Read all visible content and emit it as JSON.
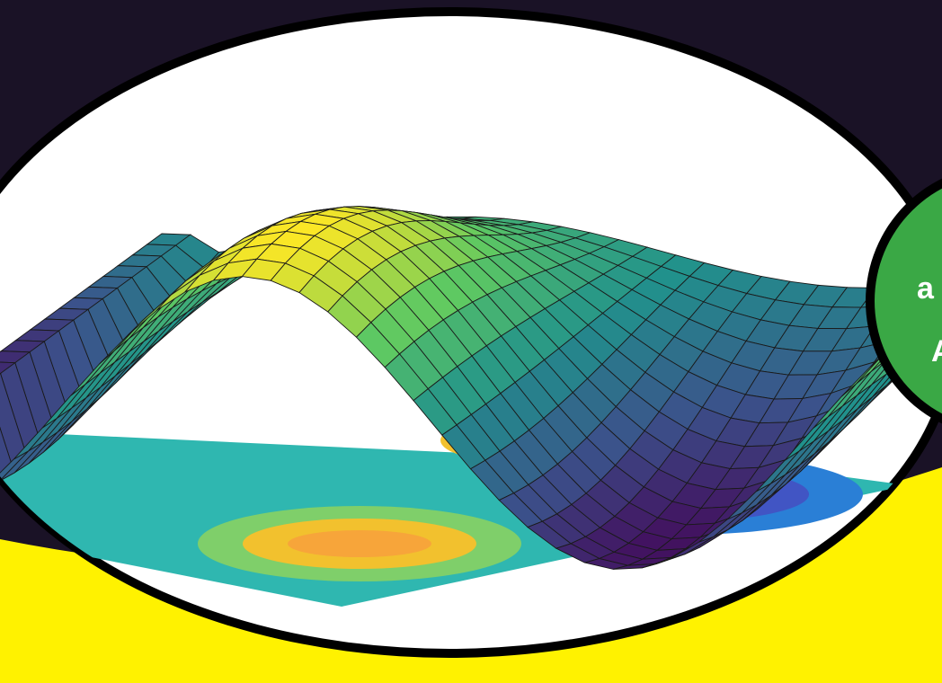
{
  "badge": {
    "lines": [
      "a",
      "A"
    ]
  }
}
